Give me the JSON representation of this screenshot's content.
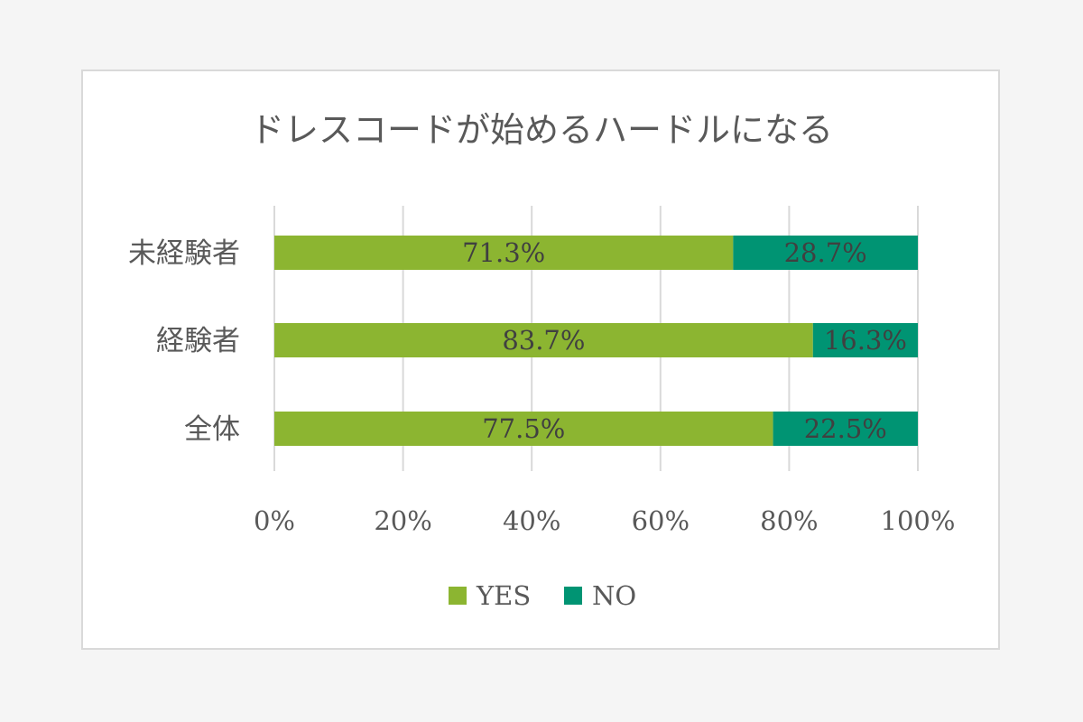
{
  "chart_data": {
    "type": "bar",
    "orientation": "horizontal",
    "stacked": "percent",
    "title": "ドレスコードが始めるハードルになる",
    "categories": [
      "未経験者",
      "経験者",
      "全体"
    ],
    "series": [
      {
        "name": "YES",
        "color": "#8cb531",
        "values": [
          71.3,
          83.7,
          77.5
        ],
        "labels": [
          "71.3%",
          "83.7%",
          "77.5%"
        ]
      },
      {
        "name": "NO",
        "color": "#009473",
        "values": [
          28.7,
          16.3,
          22.5
        ],
        "labels": [
          "28.7%",
          "16.3%",
          "22.5%"
        ]
      }
    ],
    "xlim": [
      0,
      100
    ],
    "x_ticks": [
      "0%",
      "20%",
      "40%",
      "60%",
      "80%",
      "100%"
    ],
    "grid": true,
    "legend": "bottom"
  }
}
